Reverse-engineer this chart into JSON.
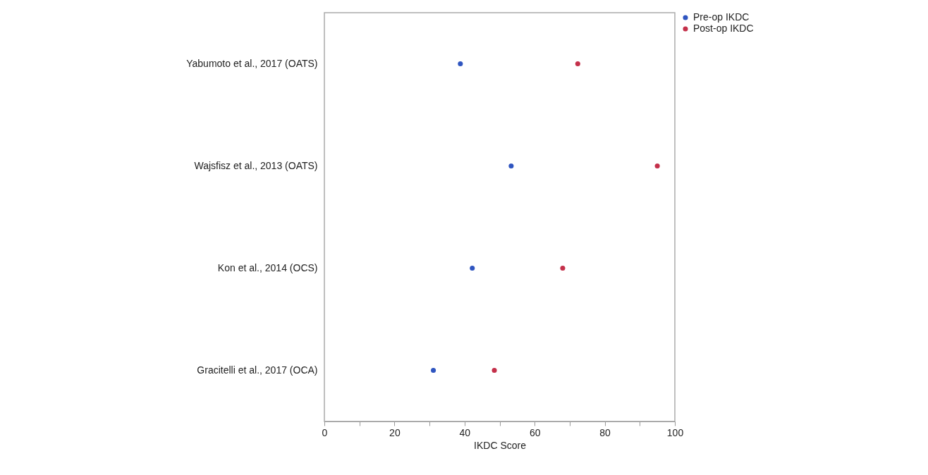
{
  "chart_data": {
    "type": "scatter",
    "xlabel": "IKDC Score",
    "categories": [
      "Yabumoto et al., 2017 (OATS)",
      "Wajsfisz et al., 2013 (OATS)",
      "Kon et al., 2014 (OCS)",
      "Gracitelli et al., 2017 (OCA)"
    ],
    "orientation": "horizontal",
    "series": [
      {
        "name": "Pre-op IKDC",
        "color": "#2f55c0",
        "values": [
          38.8,
          53.3,
          42.2,
          31.1
        ]
      },
      {
        "name": "Post-op IKDC",
        "color": "#c4304a",
        "values": [
          72.3,
          95.0,
          68.0,
          48.5
        ]
      }
    ],
    "xlim": [
      0,
      100
    ],
    "xticks": [
      0,
      {
        "value": 10,
        "label": null
      },
      20,
      {
        "value": 30,
        "label": null
      },
      40,
      {
        "value": 50,
        "label": null
      },
      60,
      {
        "value": 70,
        "label": null
      },
      80,
      {
        "value": 90,
        "label": null
      },
      100
    ],
    "grid": false,
    "legend": "top right",
    "marker": "circle"
  }
}
